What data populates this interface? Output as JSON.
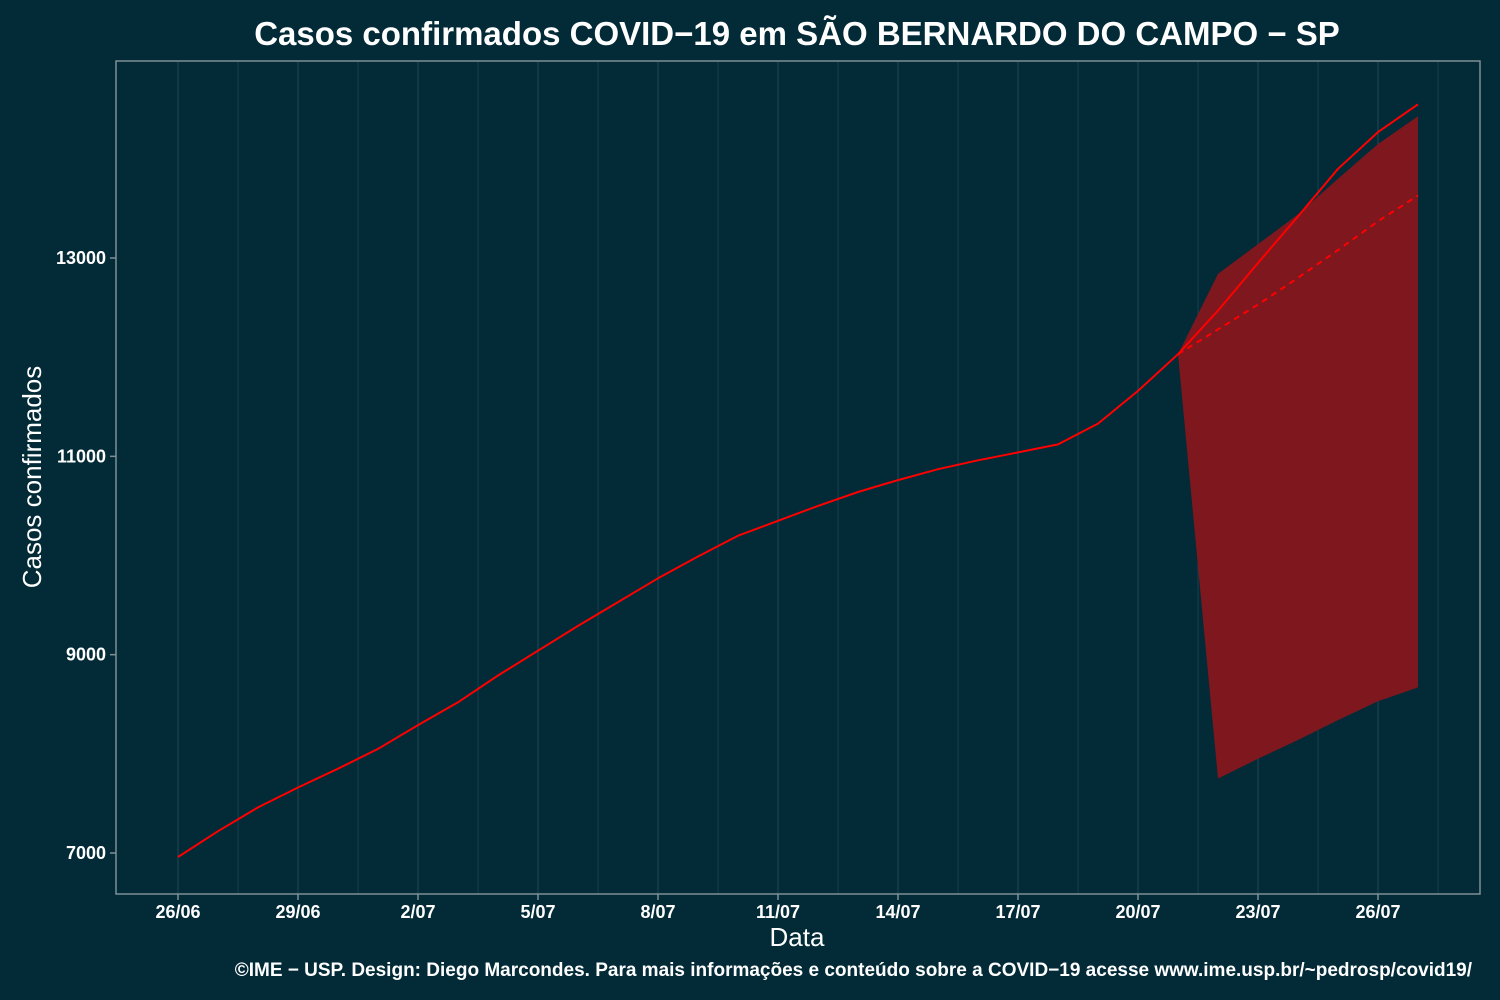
{
  "chart_data": {
    "type": "line",
    "title": "Casos confirmados COVID−19 em SÃO BERNARDO DO CAMPO − SP",
    "xlabel": "Data",
    "ylabel": "Casos confirmados",
    "caption": "©IME − USP. Design: Diego Marcondes. Para mais informações e conteúdo sobre a COVID−19 acesse www.ime.usp.br/~pedrosp/covid19/",
    "x_ticks": [
      "26/06",
      "29/06",
      "2/07",
      "5/07",
      "8/07",
      "11/07",
      "14/07",
      "17/07",
      "20/07",
      "23/07",
      "26/07"
    ],
    "y_ticks": [
      7000,
      9000,
      11000,
      13000
    ],
    "ylim": [
      6600,
      14500
    ],
    "grid": true,
    "series": [
      {
        "role": "observed",
        "style": "solid",
        "color": "#ff0000",
        "x": [
          "26/06",
          "27/06",
          "28/06",
          "29/06",
          "30/06",
          "1/07",
          "2/07",
          "3/07",
          "4/07",
          "5/07",
          "6/07",
          "7/07",
          "8/07",
          "9/07",
          "10/07",
          "11/07",
          "12/07",
          "13/07",
          "14/07",
          "15/07",
          "16/07",
          "17/07",
          "18/07",
          "19/07",
          "20/07",
          "21/07",
          "22/07",
          "23/07",
          "24/07",
          "25/07",
          "26/07",
          "27/07"
        ],
        "values": [
          6960,
          7220,
          7460,
          7660,
          7850,
          8050,
          8290,
          8520,
          8790,
          9040,
          9290,
          9530,
          9770,
          9990,
          10200,
          10350,
          10500,
          10640,
          10760,
          10870,
          10960,
          11040,
          11120,
          11330,
          11660,
          12030,
          12470,
          12950,
          13420,
          13900,
          14270,
          14550
        ]
      },
      {
        "role": "predicted",
        "style": "dashed",
        "color": "#ff0000",
        "x": [
          "21/07",
          "22/07",
          "23/07",
          "24/07",
          "25/07",
          "26/07",
          "27/07"
        ],
        "values": [
          12030,
          12280,
          12530,
          12800,
          13080,
          13370,
          13630
        ]
      }
    ],
    "band": {
      "role": "prediction-interval",
      "color": "#7e171e",
      "x": [
        "21/07",
        "22/07",
        "23/07",
        "24/07",
        "25/07",
        "26/07",
        "27/07"
      ],
      "upper": [
        12030,
        12840,
        13140,
        13440,
        13800,
        14150,
        14430
      ],
      "lower": [
        12030,
        7750,
        7950,
        8140,
        8340,
        8530,
        8670
      ]
    }
  }
}
